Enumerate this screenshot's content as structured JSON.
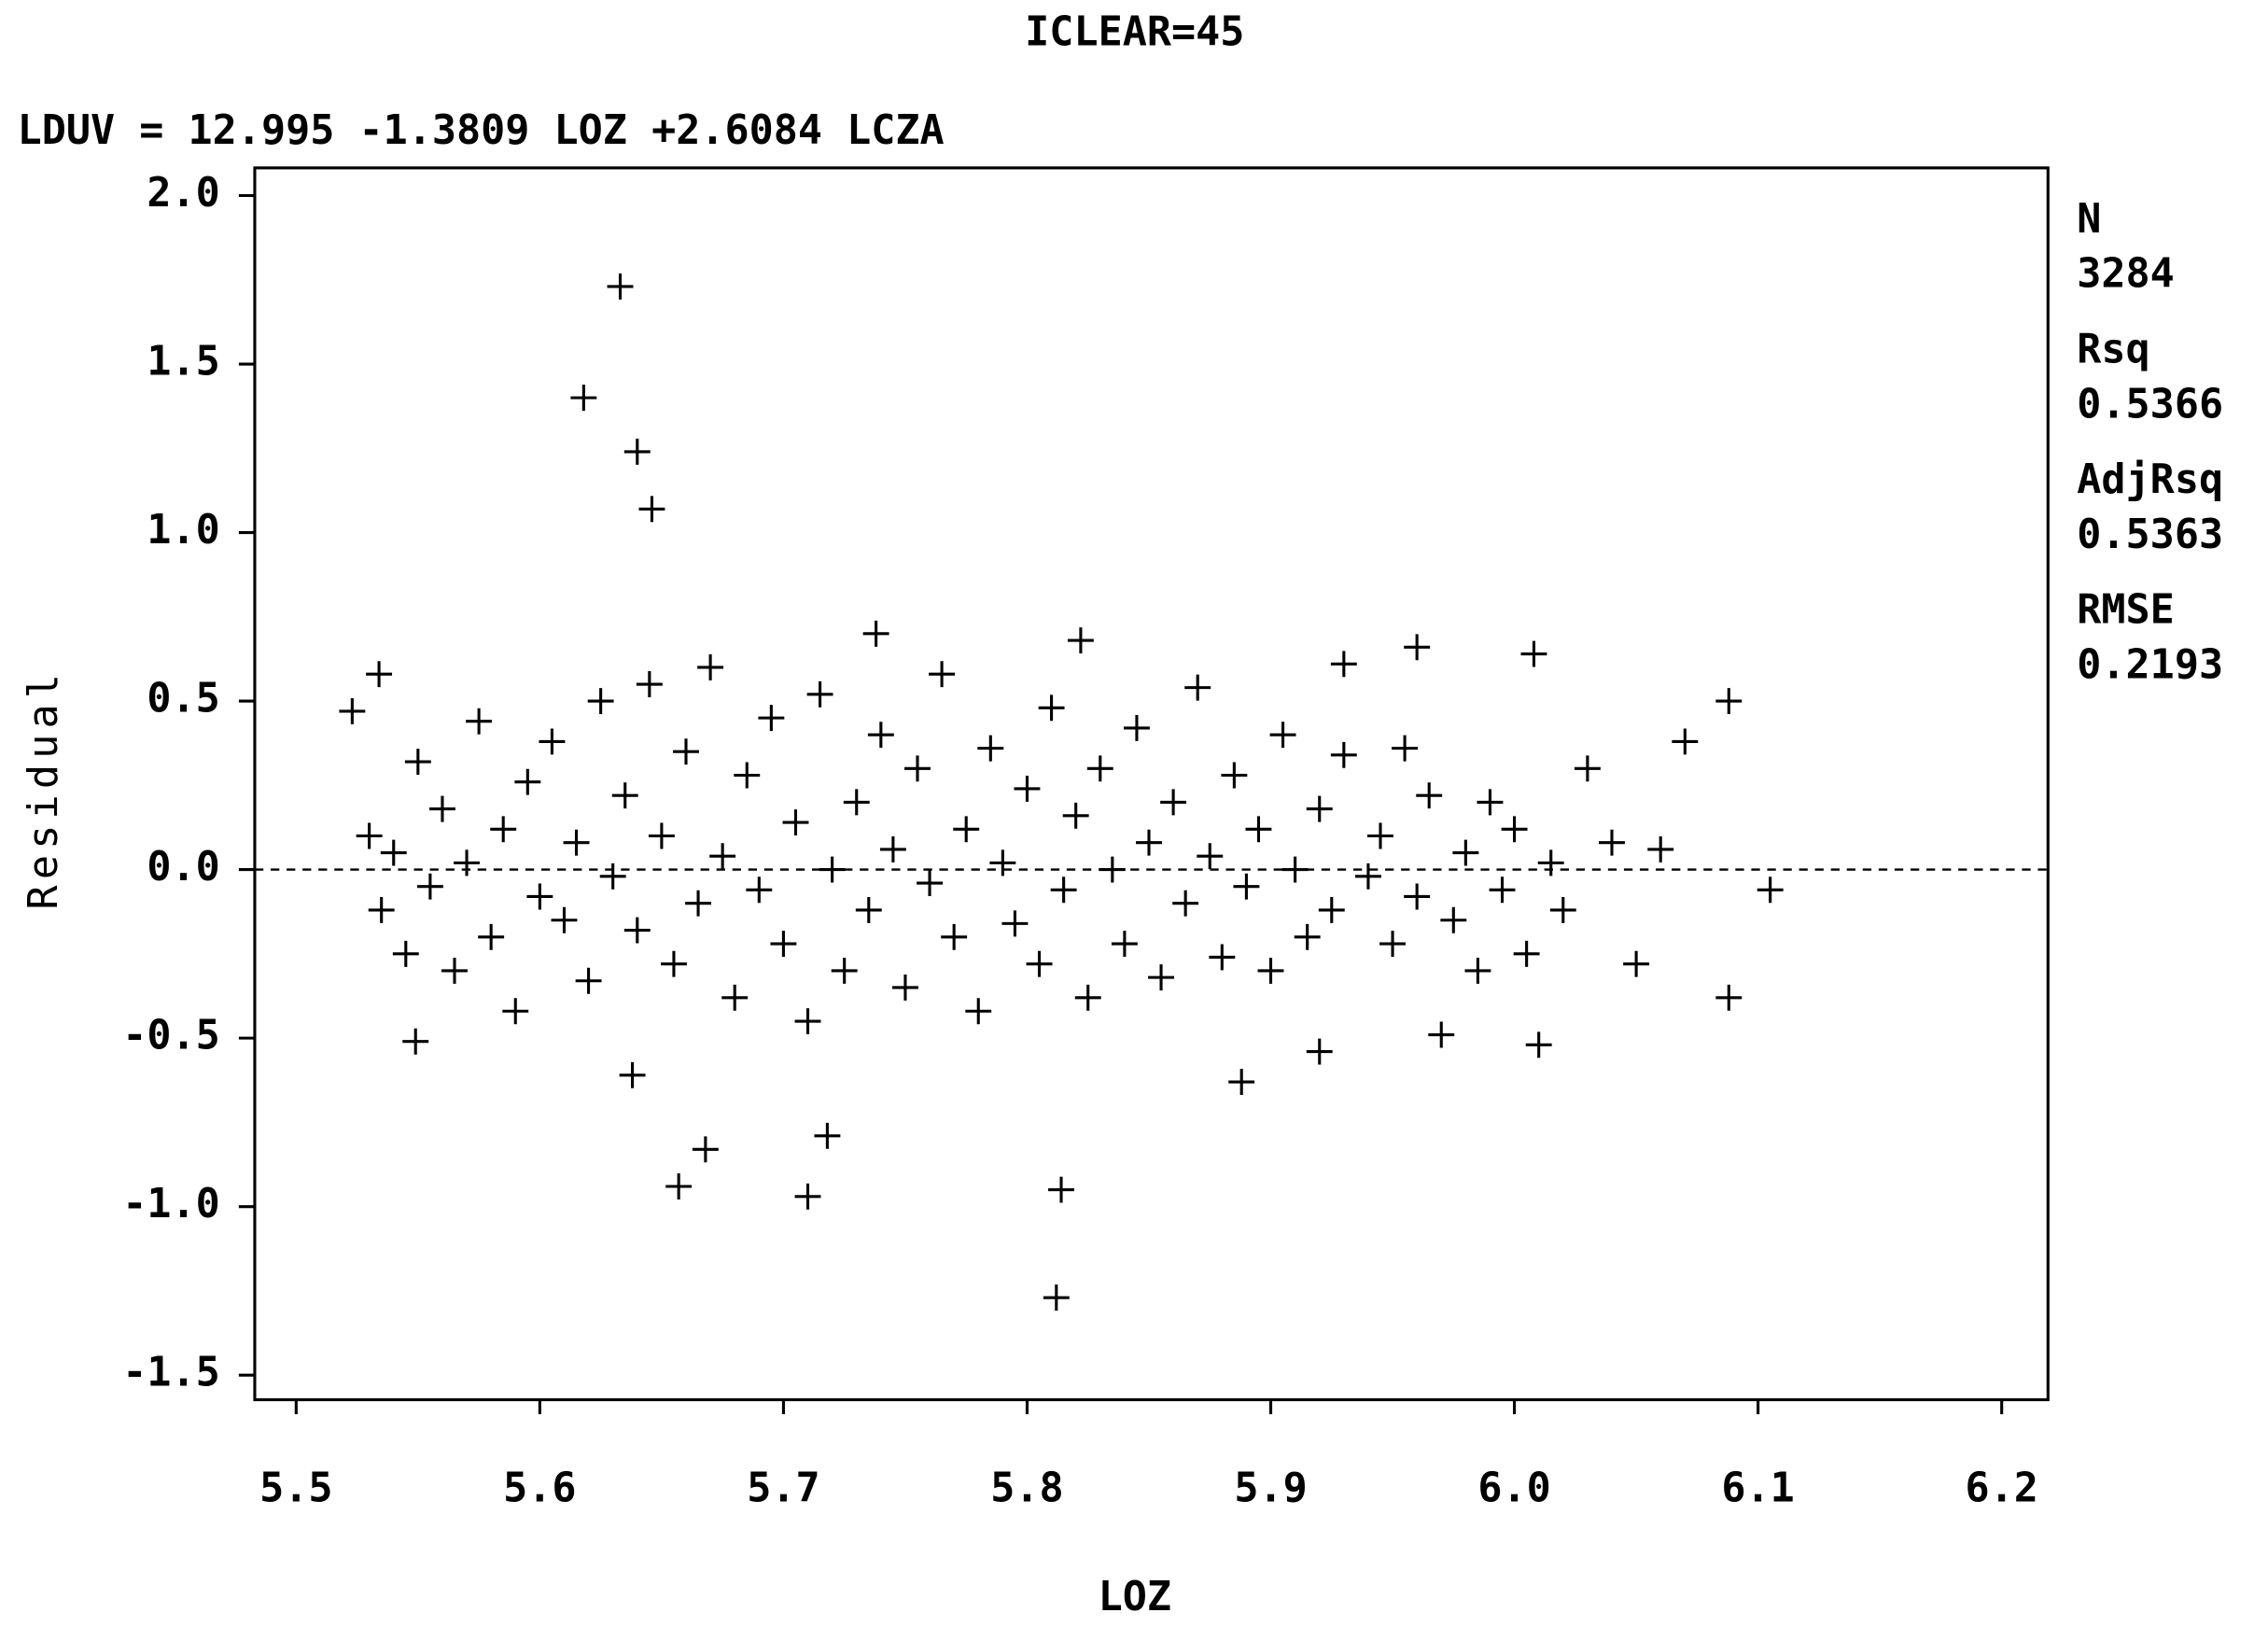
{
  "chart_data": {
    "type": "scatter",
    "title": "ICLEAR=45",
    "subtitle": "LDUV = 12.995 -1.3809 LOZ +2.6084 LCZA",
    "x_label": "LOZ",
    "y_label": "Residual",
    "marker_color": "#000000",
    "reference_line": 0,
    "xlim": [
      5.483,
      6.219
    ],
    "ylim": [
      -1.573,
      2.082
    ],
    "xticks": [
      5.5,
      5.6,
      5.7,
      5.8,
      5.9,
      {
        "value": 6,
        "label": "6.0"
      },
      6.1,
      6.2
    ],
    "yticks": [
      {
        "value": 2,
        "label": "2.0"
      },
      1.5,
      {
        "value": 1,
        "label": "1.0"
      },
      0.5,
      {
        "value": 0,
        "label": "0.0"
      },
      -0.5,
      {
        "value": -1,
        "label": "-1.0"
      },
      -1.5
    ],
    "stats": [
      {
        "label": "N",
        "value": 3284
      },
      {
        "label": "Rsq",
        "value": 0.5366
      },
      {
        "label": "AdjRsq",
        "value": 0.5363
      },
      {
        "label": "RMSE",
        "value": 0.2193
      }
    ],
    "x": [
      5.633,
      5.618,
      5.64,
      5.646,
      5.657,
      5.668,
      5.71,
      5.718,
      5.814,
      5.812,
      5.888,
      5.638,
      5.549,
      5.92,
      5.97,
      6.01,
      6.088,
      6.105,
      6.088,
      6.07,
      6.008,
      5.96,
      5.93,
      5.822,
      5.738,
      5.534,
      5.523,
      5.53,
      5.535,
      5.54,
      5.545,
      5.55,
      5.555,
      5.56,
      5.565,
      5.57,
      5.575,
      5.58,
      5.585,
      5.59,
      5.595,
      5.6,
      5.605,
      5.61,
      5.615,
      5.62,
      5.625,
      5.63,
      5.635,
      5.64,
      5.645,
      5.65,
      5.655,
      5.66,
      5.665,
      5.67,
      5.675,
      5.68,
      5.685,
      5.69,
      5.695,
      5.7,
      5.705,
      5.71,
      5.715,
      5.72,
      5.725,
      5.73,
      5.735,
      5.74,
      5.745,
      5.75,
      5.755,
      5.76,
      5.765,
      5.77,
      5.775,
      5.78,
      5.785,
      5.79,
      5.795,
      5.8,
      5.805,
      5.81,
      5.815,
      5.82,
      5.825,
      5.83,
      5.835,
      5.84,
      5.845,
      5.85,
      5.855,
      5.86,
      5.865,
      5.87,
      5.875,
      5.88,
      5.885,
      5.89,
      5.895,
      5.9,
      5.905,
      5.91,
      5.915,
      5.92,
      5.925,
      5.93,
      5.94,
      5.945,
      5.95,
      5.955,
      5.96,
      5.965,
      5.975,
      5.98,
      5.985,
      5.99,
      5.995,
      6.0,
      6.005,
      6.015,
      6.02,
      6.03,
      6.04,
      6.05,
      6.06
    ],
    "values": [
      1.73,
      1.4,
      1.24,
      1.07,
      -0.94,
      -0.83,
      -0.97,
      -0.79,
      -0.95,
      -1.27,
      -0.63,
      -0.61,
      -0.51,
      -0.54,
      -0.49,
      -0.52,
      -0.38,
      -0.06,
      0.5,
      0.38,
      0.64,
      0.66,
      0.61,
      0.68,
      0.7,
      0.58,
      0.47,
      0.1,
      -0.12,
      0.05,
      -0.25,
      0.32,
      -0.05,
      0.18,
      -0.3,
      0.02,
      0.44,
      -0.2,
      0.12,
      -0.42,
      0.26,
      -0.08,
      0.38,
      -0.15,
      0.08,
      -0.33,
      0.5,
      -0.02,
      0.22,
      -0.18,
      0.55,
      0.1,
      -0.28,
      0.35,
      -0.1,
      0.6,
      0.04,
      -0.38,
      0.28,
      -0.06,
      0.45,
      -0.22,
      0.14,
      -0.45,
      0.52,
      0.0,
      -0.3,
      0.2,
      -0.12,
      0.4,
      0.06,
      -0.35,
      0.3,
      -0.04,
      0.58,
      -0.2,
      0.12,
      -0.42,
      0.36,
      0.02,
      -0.16,
      0.24,
      -0.28,
      0.48,
      -0.06,
      0.16,
      -0.38,
      0.3,
      0.0,
      -0.22,
      0.42,
      0.08,
      -0.32,
      0.2,
      -0.1,
      0.54,
      0.04,
      -0.26,
      0.28,
      -0.05,
      0.12,
      -0.3,
      0.4,
      0.0,
      -0.2,
      0.18,
      -0.12,
      0.34,
      -0.02,
      0.1,
      -0.22,
      0.36,
      -0.08,
      0.22,
      -0.15,
      0.05,
      -0.3,
      0.2,
      -0.06,
      0.12,
      -0.25,
      0.02,
      -0.12,
      0.3,
      0.08,
      -0.28,
      0.06
    ]
  }
}
